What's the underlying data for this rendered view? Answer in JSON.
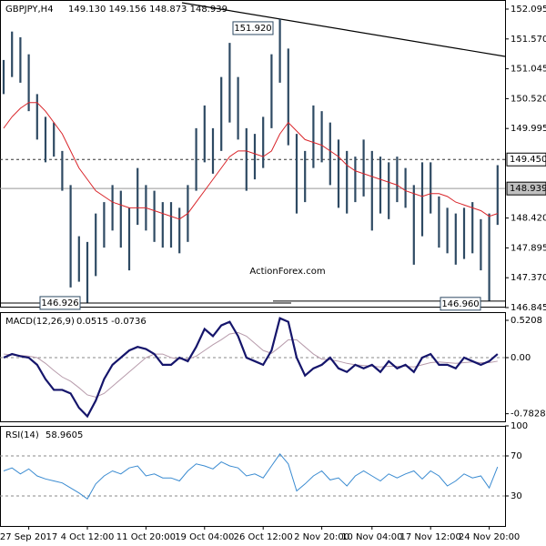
{
  "chart_data": [
    {
      "type": "ohlc",
      "title": "GBPJPY,H4",
      "subtitle": "149.130 149.156 148.873 148.939",
      "watermark": "ActionForex.com",
      "categories": [
        null,
        null,
        null,
        "27 Sep 2017",
        null,
        null,
        null,
        null,
        null,
        null,
        "4 Oct 12:00",
        null,
        null,
        null,
        null,
        null,
        null,
        "11 Oct 20:00",
        null,
        null,
        null,
        null,
        null,
        null,
        "19 Oct 04:00",
        null,
        null,
        null,
        null,
        null,
        null,
        "26 Oct 12:00",
        null,
        null,
        null,
        null,
        null,
        null,
        "2 Nov 20:00",
        null,
        null,
        null,
        null,
        null,
        "10 Nov 04:00",
        null,
        null,
        null,
        null,
        null,
        null,
        "17 Nov 12:00",
        null,
        null,
        null,
        null,
        null,
        null,
        "24 Nov 20:00",
        null
      ],
      "high": [
        151.2,
        151.7,
        151.6,
        151.3,
        150.6,
        150.2,
        150.1,
        149.6,
        149.0,
        148.1,
        148.0,
        148.5,
        148.7,
        149.0,
        148.9,
        148.6,
        149.3,
        149.0,
        148.9,
        148.7,
        148.7,
        148.6,
        149.0,
        150.0,
        150.4,
        150.0,
        150.9,
        151.5,
        150.9,
        150.0,
        149.9,
        150.2,
        151.3,
        151.92,
        151.4,
        149.9,
        149.6,
        150.4,
        150.3,
        150.1,
        149.8,
        149.6,
        149.5,
        149.8,
        149.6,
        149.5,
        149.4,
        149.5,
        149.3,
        149.0,
        149.4,
        149.4,
        148.8,
        148.6,
        148.5,
        148.6,
        148.7,
        148.4,
        148.5,
        149.35
      ],
      "low": [
        150.6,
        150.9,
        150.8,
        150.3,
        149.8,
        149.4,
        149.5,
        148.9,
        147.2,
        147.3,
        146.926,
        147.4,
        147.9,
        148.2,
        147.9,
        147.5,
        148.3,
        148.2,
        148.0,
        147.9,
        147.9,
        147.8,
        148.0,
        148.9,
        149.4,
        149.2,
        149.6,
        150.1,
        149.8,
        148.9,
        149.1,
        149.3,
        150.0,
        150.8,
        149.7,
        148.5,
        148.7,
        149.3,
        149.4,
        149.0,
        148.6,
        148.5,
        148.7,
        148.8,
        148.2,
        148.5,
        148.4,
        148.7,
        148.6,
        147.6,
        148.1,
        148.5,
        147.9,
        147.8,
        147.6,
        147.7,
        147.8,
        147.5,
        146.96,
        148.3
      ],
      "bar_color": "#2e4a63",
      "ma_values": [
        150.0,
        150.2,
        150.35,
        150.45,
        150.45,
        150.3,
        150.1,
        149.9,
        149.6,
        149.3,
        149.1,
        148.9,
        148.8,
        148.7,
        148.65,
        148.6,
        148.6,
        148.6,
        148.55,
        148.5,
        148.45,
        148.4,
        148.5,
        148.7,
        148.9,
        149.1,
        149.3,
        149.5,
        149.6,
        149.6,
        149.55,
        149.5,
        149.6,
        149.9,
        150.1,
        149.95,
        149.8,
        149.75,
        149.7,
        149.6,
        149.5,
        149.35,
        149.25,
        149.2,
        149.15,
        149.1,
        149.05,
        149.0,
        148.9,
        148.85,
        148.8,
        148.85,
        148.85,
        148.8,
        148.7,
        148.65,
        148.6,
        148.55,
        148.45,
        148.5
      ],
      "ma_color": "#d9252a",
      "ylim": [
        146.845,
        152.255
      ],
      "yticks": [
        152.095,
        {
          "value": 151.57,
          "label": "151.570"
        },
        151.045,
        {
          "value": 150.52,
          "label": "150.520"
        },
        149.995,
        {
          "value": 148.42,
          "label": "148.420"
        },
        147.895,
        {
          "value": 147.37,
          "label": "147.370"
        },
        146.845
      ],
      "levels": [
        {
          "value": 149.45,
          "label": "149.450"
        },
        {
          "value": 148.939,
          "label": "148.939"
        }
      ],
      "annotations": [
        {
          "value": 151.92,
          "label": "151.920"
        },
        {
          "value": 146.926,
          "label": "146.926"
        },
        {
          "value": 146.96,
          "label": "146.960"
        }
      ]
    },
    {
      "type": "line",
      "title": "MACD(12,26,9)",
      "subtitle": "0.0515 -0.0736",
      "ylim": [
        -0.889,
        0.635
      ],
      "yticks": [
        0.5208,
        {
          "value": 0,
          "label": "0.00"
        },
        -0.7828
      ],
      "series": [
        {
          "color": "#15156b",
          "values": [
            0.0,
            0.05,
            0.02,
            0.0,
            -0.1,
            -0.3,
            -0.45,
            -0.45,
            -0.5,
            -0.7,
            -0.82,
            -0.6,
            -0.3,
            -0.1,
            0.0,
            0.1,
            0.15,
            0.12,
            0.05,
            -0.1,
            -0.1,
            0.0,
            -0.05,
            0.15,
            0.4,
            0.3,
            0.45,
            0.5,
            0.3,
            0.0,
            -0.05,
            -0.1,
            0.1,
            0.55,
            0.5,
            0.0,
            -0.25,
            -0.15,
            -0.1,
            0.0,
            -0.15,
            -0.2,
            -0.1,
            -0.15,
            -0.1,
            -0.2,
            -0.05,
            -0.15,
            -0.1,
            -0.2,
            0.0,
            0.05,
            -0.1,
            -0.1,
            -0.15,
            0.0,
            -0.05,
            -0.1,
            -0.05,
            0.05
          ]
        },
        {
          "color": "#b79bab",
          "values": [
            0.05,
            0.04,
            0.03,
            0.02,
            0.0,
            -0.08,
            -0.18,
            -0.27,
            -0.33,
            -0.42,
            -0.52,
            -0.55,
            -0.5,
            -0.4,
            -0.3,
            -0.2,
            -0.1,
            0.0,
            0.05,
            0.05,
            0.0,
            -0.02,
            -0.02,
            0.02,
            0.1,
            0.18,
            0.25,
            0.33,
            0.35,
            0.3,
            0.2,
            0.1,
            0.06,
            0.15,
            0.25,
            0.25,
            0.15,
            0.05,
            -0.02,
            -0.03,
            -0.05,
            -0.08,
            -0.1,
            -0.11,
            -0.12,
            -0.13,
            -0.12,
            -0.12,
            -0.12,
            -0.13,
            -0.1,
            -0.07,
            -0.06,
            -0.07,
            -0.08,
            -0.07,
            -0.06,
            -0.07,
            -0.07,
            -0.05
          ]
        }
      ]
    },
    {
      "type": "line",
      "title": "RSI(14)",
      "subtitle": "58.9605",
      "ylim": [
        0,
        100
      ],
      "yticks": [
        100,
        70,
        30
      ],
      "series": [
        {
          "color": "#3a8bd1",
          "values": [
            55,
            58,
            52,
            57,
            50,
            47,
            45,
            43,
            38,
            33,
            27,
            42,
            50,
            55,
            52,
            58,
            60,
            50,
            52,
            48,
            48,
            45,
            55,
            62,
            60,
            57,
            64,
            60,
            58,
            50,
            52,
            48,
            60,
            72,
            62,
            35,
            42,
            50,
            55,
            46,
            48,
            40,
            50,
            55,
            50,
            45,
            52,
            48,
            52,
            55,
            47,
            55,
            50,
            40,
            45,
            52,
            48,
            50,
            38,
            59
          ]
        }
      ]
    }
  ]
}
